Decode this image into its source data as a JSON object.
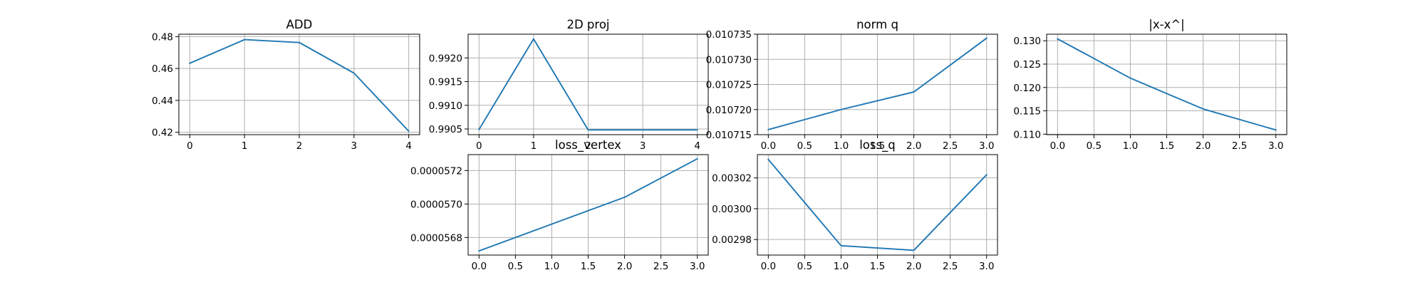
{
  "chart_data": [
    {
      "type": "line",
      "title": "ADD",
      "x": [
        0,
        1,
        2,
        3,
        4
      ],
      "values": [
        0.4633,
        0.4781,
        0.4763,
        0.4571,
        0.4207
      ],
      "xlim": [
        -0.2,
        4.2
      ],
      "ylim": [
        0.4185,
        0.4815
      ],
      "xticks": [
        0,
        1,
        2,
        3,
        4
      ],
      "xtick_labels": [
        "0",
        "1",
        "2",
        "3",
        "4"
      ],
      "yticks": [
        0.42,
        0.44,
        0.46,
        0.48
      ],
      "ytick_labels": [
        "0.42",
        "0.44",
        "0.46",
        "0.48"
      ],
      "grid": true,
      "color": "#1f77b4"
    },
    {
      "type": "line",
      "title": "2D proj",
      "x": [
        0,
        1,
        2,
        3,
        4
      ],
      "values": [
        0.99049,
        0.9924,
        0.99048,
        0.99048,
        0.99048
      ],
      "xlim": [
        -0.2,
        4.2
      ],
      "ylim": [
        0.99038,
        0.9925
      ],
      "xticks": [
        0,
        1,
        2,
        3,
        4
      ],
      "xtick_labels": [
        "0",
        "1",
        "2",
        "3",
        "4"
      ],
      "yticks": [
        0.9905,
        0.991,
        0.9915,
        0.992
      ],
      "ytick_labels": [
        "0.9905",
        "0.9910",
        "0.9915",
        "0.9920"
      ],
      "grid": true,
      "color": "#1f77b4"
    },
    {
      "type": "line",
      "title": "norm q",
      "x": [
        0,
        1,
        2,
        3
      ],
      "values": [
        0.010716,
        0.01072,
        0.0107235,
        0.0107342
      ],
      "xlim": [
        -0.15,
        3.15
      ],
      "ylim": [
        0.010715,
        0.010735
      ],
      "xticks": [
        0,
        0.5,
        1,
        1.5,
        2,
        2.5,
        3
      ],
      "xtick_labels": [
        "0.0",
        "0.5",
        "1.0",
        "1.5",
        "2.0",
        "2.5",
        "3.0"
      ],
      "yticks": [
        0.010715,
        0.01072,
        0.010725,
        0.01073,
        0.010735
      ],
      "ytick_labels": [
        "0.010715",
        "0.010720",
        "0.010725",
        "0.010730",
        "0.010735"
      ],
      "grid": true,
      "color": "#1f77b4"
    },
    {
      "type": "line",
      "title": "|x-x^|",
      "x": [
        0,
        1,
        2,
        3
      ],
      "values": [
        0.1304,
        0.122,
        0.1154,
        0.1109
      ],
      "xlim": [
        -0.15,
        3.15
      ],
      "ylim": [
        0.1099,
        0.1314
      ],
      "xticks": [
        0,
        0.5,
        1,
        1.5,
        2,
        2.5,
        3
      ],
      "xtick_labels": [
        "0.0",
        "0.5",
        "1.0",
        "1.5",
        "2.0",
        "2.5",
        "3.0"
      ],
      "yticks": [
        0.11,
        0.115,
        0.12,
        0.125,
        0.13
      ],
      "ytick_labels": [
        "0.110",
        "0.115",
        "0.120",
        "0.125",
        "0.130"
      ],
      "grid": true,
      "color": "#1f77b4"
    },
    {
      "type": "line",
      "title": "loss_vertex",
      "x": [
        0,
        1,
        2,
        3
      ],
      "values": [
        5.672e-05,
        5.688e-05,
        5.704e-05,
        5.727e-05
      ],
      "xlim": [
        -0.15,
        3.15
      ],
      "ylim": [
        5.6695e-05,
        5.7295e-05
      ],
      "xticks": [
        0,
        0.5,
        1,
        1.5,
        2,
        2.5,
        3
      ],
      "xtick_labels": [
        "0.0",
        "0.5",
        "1.0",
        "1.5",
        "2.0",
        "2.5",
        "3.0"
      ],
      "yticks": [
        5.68e-05,
        5.7e-05,
        5.72e-05
      ],
      "ytick_labels": [
        "0.0000568",
        "0.0000570",
        "0.0000572"
      ],
      "grid": true,
      "color": "#1f77b4"
    },
    {
      "type": "line",
      "title": "loss_q",
      "x": [
        0,
        1,
        2,
        3
      ],
      "values": [
        0.003032,
        0.002976,
        0.002973,
        0.003022
      ],
      "xlim": [
        -0.15,
        3.15
      ],
      "ylim": [
        0.0029699,
        0.0030351
      ],
      "xticks": [
        0,
        0.5,
        1,
        1.5,
        2,
        2.5,
        3
      ],
      "xtick_labels": [
        "0.0",
        "0.5",
        "1.0",
        "1.5",
        "2.0",
        "2.5",
        "3.0"
      ],
      "yticks": [
        0.00298,
        0.003,
        0.00302
      ],
      "ytick_labels": [
        "0.00298",
        "0.00300",
        "0.00302"
      ],
      "grid": true,
      "color": "#1f77b4"
    }
  ]
}
